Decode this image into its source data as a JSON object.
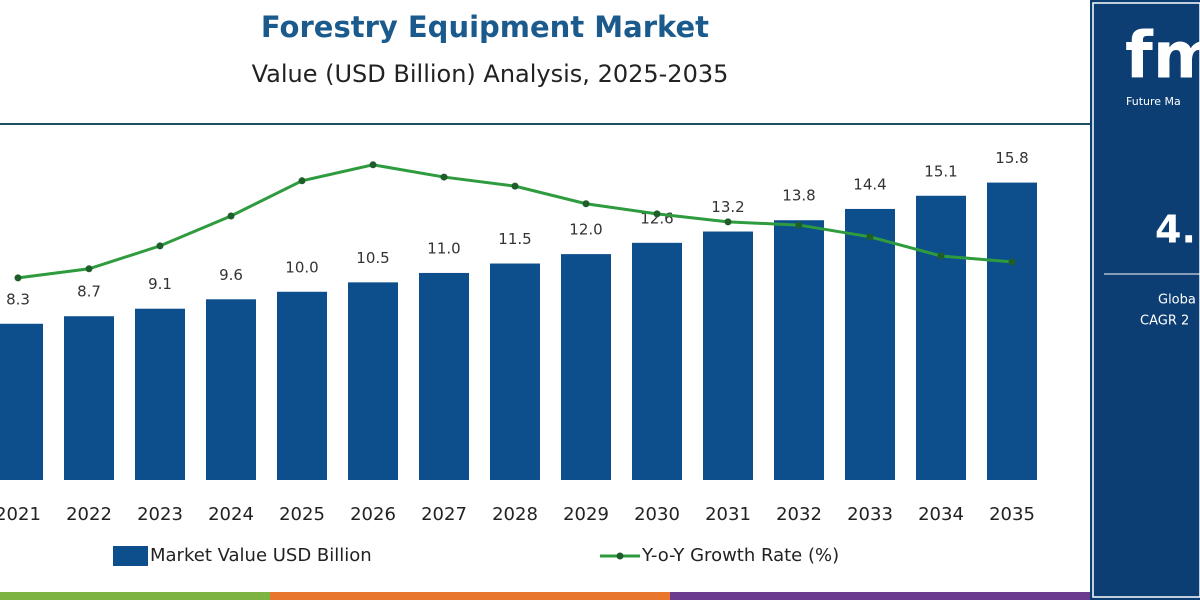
{
  "chart_data": {
    "type": "bar",
    "title": "Forestry Equipment Market",
    "subtitle": "Value (USD Billion) Analysis, 2025-2035",
    "categories": [
      "2021",
      "2022",
      "2023",
      "2024",
      "2025",
      "2026",
      "2027",
      "2028",
      "2029",
      "2030",
      "2031",
      "2032",
      "2033",
      "2034",
      "2035"
    ],
    "series": [
      {
        "name": "Market Value USD Billion",
        "type": "bar",
        "color": "#0d4e8c",
        "values": [
          8.3,
          8.7,
          9.1,
          9.6,
          10.0,
          10.5,
          11.0,
          11.5,
          12.0,
          12.6,
          13.2,
          13.8,
          14.4,
          15.1,
          15.8
        ],
        "value_labels": [
          "8.3",
          "8.7",
          "9.1",
          "9.6",
          "10.0",
          "10.5",
          "11.0",
          "11.5",
          "12.0",
          "12.6",
          "13.2",
          "13.8",
          "14.4",
          "15.1",
          "15.8"
        ]
      },
      {
        "name": "Y-o-Y Growth Rate (%)",
        "type": "line",
        "color": "#2e9b3e",
        "axis": "y2",
        "values": [
          3.79,
          3.96,
          4.39,
          4.95,
          5.61,
          5.91,
          5.68,
          5.51,
          5.18,
          4.99,
          4.84,
          4.78,
          4.56,
          4.2,
          4.09
        ]
      }
    ],
    "ylim": [
      0,
      17
    ],
    "y2lim": [
      0,
      6
    ],
    "grid": false,
    "legend": "bottom",
    "sidebar": {
      "logo": "fmi",
      "brand": "Future Ma",
      "value": "4.",
      "label1": "Globa",
      "label2": "CAGR 2"
    }
  }
}
